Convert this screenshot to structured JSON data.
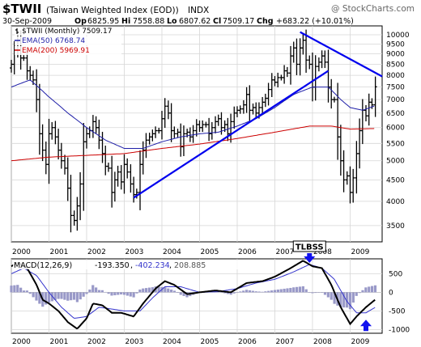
{
  "header": {
    "symbol": "$TWII",
    "name": "(Taiwan Weighted Index (EOD))",
    "exchange": "INDX",
    "watermark": "@ StockCharts.com",
    "date": "30-Sep-2009",
    "op_label": "Op",
    "op": "6825.95",
    "hi_label": "Hi",
    "hi": "7558.88",
    "lo_label": "Lo",
    "lo": "6807.62",
    "cl_label": "Cl",
    "cl": "7509.17",
    "chg_label": "Chg",
    "chg": "+683.22 (+10.01%)"
  },
  "colors": {
    "price": "#000000",
    "ema50": "#1f1fa8",
    "ema200": "#cc0000",
    "trendline": "#0000ee",
    "macd": "#000000",
    "signal": "#3333cc",
    "histogram": "#9999c8",
    "panel_bg": "#ffffff",
    "grid": "#d6d6d6",
    "axis": "#000000",
    "annotation_arrow": "#1111ee"
  },
  "chart_data": [
    {
      "type": "ohlc",
      "legend": [
        {
          "key": "price",
          "text": "$TWII (Monthly) 7509.17"
        },
        {
          "key": "ema50",
          "text": "EMA(50) 6768.74"
        },
        {
          "key": "ema200",
          "text": "EMA(200) 5969.91"
        }
      ],
      "scale": "log",
      "ylim": [
        3200,
        10500
      ],
      "xlim": [
        2000.0,
        2009.85
      ],
      "year_ticks": [
        "2000",
        "2001",
        "2002",
        "2003",
        "2004",
        "2005",
        "2006",
        "2007",
        "2008",
        "2009"
      ],
      "y_ticks": [
        3500,
        4000,
        4500,
        5000,
        5500,
        6000,
        6500,
        7000,
        7500,
        8000,
        8500,
        9000,
        9500,
        10000
      ],
      "grid": true,
      "legend_position": "top-left",
      "price_anchors": [
        [
          2000.0,
          8500
        ],
        [
          2000.08,
          9200
        ],
        [
          2000.17,
          9700
        ],
        [
          2000.25,
          8800
        ],
        [
          2000.33,
          8800
        ],
        [
          2000.42,
          8200
        ],
        [
          2000.5,
          8000
        ],
        [
          2000.58,
          7800
        ],
        [
          2000.67,
          7000
        ],
        [
          2000.75,
          5800
        ],
        [
          2000.83,
          5300
        ],
        [
          2000.92,
          4900
        ],
        [
          2001.0,
          5800
        ],
        [
          2001.08,
          6000
        ],
        [
          2001.17,
          5700
        ],
        [
          2001.25,
          5300
        ],
        [
          2001.33,
          5000
        ],
        [
          2001.42,
          4800
        ],
        [
          2001.5,
          4300
        ],
        [
          2001.58,
          3700
        ],
        [
          2001.67,
          3600
        ],
        [
          2001.75,
          3900
        ],
        [
          2001.83,
          4400
        ],
        [
          2001.92,
          5550
        ],
        [
          2002.0,
          5800
        ],
        [
          2002.08,
          5900
        ],
        [
          2002.17,
          6200
        ],
        [
          2002.25,
          6000
        ],
        [
          2002.33,
          5600
        ],
        [
          2002.42,
          5200
        ],
        [
          2002.5,
          4850
        ],
        [
          2002.58,
          4800
        ],
        [
          2002.67,
          4200
        ],
        [
          2002.75,
          4500
        ],
        [
          2002.83,
          4700
        ],
        [
          2002.92,
          4450
        ],
        [
          2003.0,
          4900
        ],
        [
          2003.08,
          4700
        ],
        [
          2003.17,
          4400
        ],
        [
          2003.25,
          4150
        ],
        [
          2003.33,
          4200
        ],
        [
          2003.42,
          4900
        ],
        [
          2003.5,
          5300
        ],
        [
          2003.58,
          5600
        ],
        [
          2003.67,
          5700
        ],
        [
          2003.75,
          5800
        ],
        [
          2003.83,
          5900
        ],
        [
          2003.92,
          5900
        ],
        [
          2004.0,
          6300
        ],
        [
          2004.08,
          6750
        ],
        [
          2004.17,
          6500
        ],
        [
          2004.25,
          5900
        ],
        [
          2004.33,
          5800
        ],
        [
          2004.42,
          5850
        ],
        [
          2004.5,
          5400
        ],
        [
          2004.58,
          5800
        ],
        [
          2004.67,
          5850
        ],
        [
          2004.75,
          5700
        ],
        [
          2004.83,
          5900
        ],
        [
          2004.92,
          6100
        ],
        [
          2005.0,
          6000
        ],
        [
          2005.08,
          6100
        ],
        [
          2005.17,
          6100
        ],
        [
          2005.25,
          5800
        ],
        [
          2005.33,
          6000
        ],
        [
          2005.42,
          6200
        ],
        [
          2005.5,
          6300
        ],
        [
          2005.58,
          6000
        ],
        [
          2005.67,
          6100
        ],
        [
          2005.75,
          5800
        ],
        [
          2005.83,
          6200
        ],
        [
          2005.92,
          6500
        ],
        [
          2006.0,
          6600
        ],
        [
          2006.08,
          6650
        ],
        [
          2006.17,
          6800
        ],
        [
          2006.25,
          7200
        ],
        [
          2006.33,
          6600
        ],
        [
          2006.42,
          6700
        ],
        [
          2006.5,
          6500
        ],
        [
          2006.58,
          6700
        ],
        [
          2006.67,
          6900
        ],
        [
          2006.75,
          7050
        ],
        [
          2006.83,
          7400
        ],
        [
          2006.92,
          7800
        ],
        [
          2007.0,
          7700
        ],
        [
          2007.08,
          7900
        ],
        [
          2007.17,
          7900
        ],
        [
          2007.25,
          8200
        ],
        [
          2007.33,
          8100
        ],
        [
          2007.42,
          8900
        ],
        [
          2007.5,
          9300
        ],
        [
          2007.58,
          8500
        ],
        [
          2007.67,
          9300
        ],
        [
          2007.75,
          9700
        ],
        [
          2007.83,
          8700
        ],
        [
          2007.92,
          8500
        ],
        [
          2008.0,
          7500
        ],
        [
          2008.08,
          8400
        ],
        [
          2008.17,
          8600
        ],
        [
          2008.25,
          8900
        ],
        [
          2008.33,
          8600
        ],
        [
          2008.42,
          7500
        ],
        [
          2008.5,
          7000
        ],
        [
          2008.58,
          7000
        ],
        [
          2008.67,
          5700
        ],
        [
          2008.75,
          5000
        ],
        [
          2008.83,
          4500
        ],
        [
          2008.92,
          4600
        ],
        [
          2009.0,
          4200
        ],
        [
          2009.08,
          4550
        ],
        [
          2009.17,
          5200
        ],
        [
          2009.25,
          5900
        ],
        [
          2009.33,
          6600
        ],
        [
          2009.42,
          6400
        ],
        [
          2009.5,
          6900
        ],
        [
          2009.58,
          6800
        ],
        [
          2009.67,
          7509
        ]
      ],
      "ema50_anchors": [
        [
          2000.0,
          7500
        ],
        [
          2000.5,
          7800
        ],
        [
          2001.0,
          7100
        ],
        [
          2001.5,
          6500
        ],
        [
          2002.0,
          6000
        ],
        [
          2002.5,
          5600
        ],
        [
          2003.0,
          5350
        ],
        [
          2003.5,
          5350
        ],
        [
          2004.0,
          5550
        ],
        [
          2004.5,
          5700
        ],
        [
          2005.0,
          5800
        ],
        [
          2005.5,
          5850
        ],
        [
          2006.0,
          6050
        ],
        [
          2006.5,
          6300
        ],
        [
          2007.0,
          6700
        ],
        [
          2007.5,
          7200
        ],
        [
          2008.0,
          7500
        ],
        [
          2008.42,
          7500
        ],
        [
          2008.75,
          7000
        ],
        [
          2009.0,
          6700
        ],
        [
          2009.33,
          6600
        ],
        [
          2009.67,
          6769
        ]
      ],
      "ema200_anchors": [
        [
          2000.0,
          5000
        ],
        [
          2001.0,
          5100
        ],
        [
          2002.0,
          5150
        ],
        [
          2003.0,
          5200
        ],
        [
          2004.0,
          5350
        ],
        [
          2005.0,
          5480
        ],
        [
          2006.0,
          5650
        ],
        [
          2007.0,
          5850
        ],
        [
          2007.92,
          6050
        ],
        [
          2008.5,
          6050
        ],
        [
          2009.0,
          5950
        ],
        [
          2009.67,
          5970
        ]
      ],
      "trendlines": [
        {
          "from": [
            2003.25,
            4080
          ],
          "to": [
            2008.42,
            8200
          ]
        },
        {
          "from": [
            2007.67,
            10150
          ],
          "to": [
            2009.85,
            7950
          ]
        }
      ]
    },
    {
      "type": "line",
      "title": "MACD(12,26,9)",
      "values_text": {
        "macd": "-193.350",
        "signal": "-402.234",
        "hist": "208.885"
      },
      "ylim": [
        -1100,
        900
      ],
      "y_ticks": [
        500,
        0,
        -500,
        -1000
      ],
      "year_ticks": [
        "2000",
        "2001",
        "2002",
        "2003",
        "2004",
        "2005",
        "2006",
        "2007",
        "2008",
        "2009"
      ],
      "macd_anchors": [
        [
          2000.0,
          700
        ],
        [
          2000.17,
          800
        ],
        [
          2000.42,
          650
        ],
        [
          2000.67,
          200
        ],
        [
          2000.83,
          -200
        ],
        [
          2001.0,
          -300
        ],
        [
          2001.25,
          -500
        ],
        [
          2001.5,
          -800
        ],
        [
          2001.75,
          -980
        ],
        [
          2002.0,
          -700
        ],
        [
          2002.17,
          -300
        ],
        [
          2002.42,
          -350
        ],
        [
          2002.67,
          -550
        ],
        [
          2002.92,
          -550
        ],
        [
          2003.25,
          -650
        ],
        [
          2003.5,
          -300
        ],
        [
          2003.83,
          100
        ],
        [
          2004.08,
          300
        ],
        [
          2004.33,
          200
        ],
        [
          2004.67,
          -50
        ],
        [
          2005.0,
          0
        ],
        [
          2005.42,
          50
        ],
        [
          2005.83,
          0
        ],
        [
          2006.25,
          250
        ],
        [
          2006.67,
          300
        ],
        [
          2007.0,
          420
        ],
        [
          2007.42,
          650
        ],
        [
          2007.75,
          850
        ],
        [
          2008.0,
          700
        ],
        [
          2008.25,
          650
        ],
        [
          2008.5,
          200
        ],
        [
          2008.75,
          -400
        ],
        [
          2009.0,
          -850
        ],
        [
          2009.17,
          -650
        ],
        [
          2009.42,
          -400
        ],
        [
          2009.67,
          -193
        ]
      ],
      "signal_anchors": [
        [
          2000.0,
          500
        ],
        [
          2000.33,
          650
        ],
        [
          2000.67,
          450
        ],
        [
          2001.0,
          0
        ],
        [
          2001.33,
          -400
        ],
        [
          2001.67,
          -700
        ],
        [
          2002.0,
          -650
        ],
        [
          2002.33,
          -400
        ],
        [
          2002.67,
          -450
        ],
        [
          2003.0,
          -500
        ],
        [
          2003.42,
          -500
        ],
        [
          2003.75,
          -150
        ],
        [
          2004.08,
          150
        ],
        [
          2004.5,
          150
        ],
        [
          2005.0,
          0
        ],
        [
          2005.5,
          20
        ],
        [
          2006.0,
          100
        ],
        [
          2006.5,
          250
        ],
        [
          2007.0,
          350
        ],
        [
          2007.5,
          550
        ],
        [
          2007.92,
          750
        ],
        [
          2008.25,
          650
        ],
        [
          2008.58,
          350
        ],
        [
          2008.92,
          -250
        ],
        [
          2009.17,
          -550
        ],
        [
          2009.42,
          -550
        ],
        [
          2009.67,
          -402
        ]
      ],
      "annotations": [
        {
          "label": "TLBSS",
          "at": [
            2007.92,
            820
          ],
          "arrow": "down"
        },
        {
          "label": "",
          "at": [
            2009.42,
            -780
          ],
          "arrow": "up"
        }
      ]
    }
  ]
}
